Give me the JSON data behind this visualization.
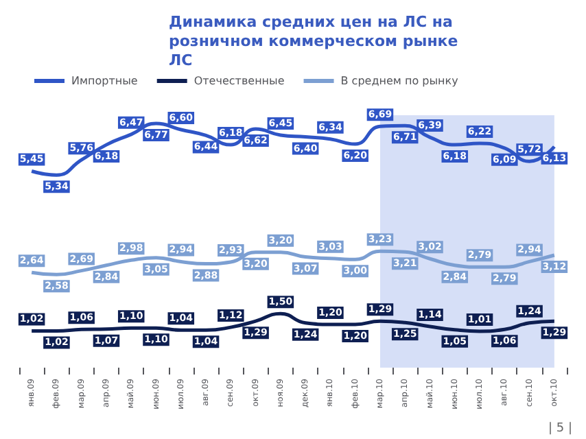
{
  "chart_data": {
    "type": "line",
    "title": "Динамика средних цен на ЛС на розничном коммерческом рынке ЛС",
    "categories": [
      "янв.09",
      "фев.09",
      "мар.09",
      "апр.09",
      "май.09",
      "июн.09",
      "июл.09",
      "авг.09",
      "сен.09",
      "окт.09",
      "ноя.09",
      "дек.09",
      "янв.10",
      "фев.10",
      "мар.10",
      "апр.10",
      "май.10",
      "июн.10",
      "июл.10",
      "авг.10",
      "сен.10",
      "окт.10"
    ],
    "series": [
      {
        "name": "Импортные",
        "color": "#2f55c6",
        "values": [
          5.45,
          5.34,
          5.76,
          6.18,
          6.47,
          6.77,
          6.6,
          6.44,
          6.18,
          6.62,
          6.45,
          6.4,
          6.34,
          6.2,
          6.69,
          6.71,
          6.39,
          6.18,
          6.22,
          6.09,
          5.72,
          6.13
        ],
        "value_labels": [
          "5,45",
          "5,34",
          "5,76",
          "6,18",
          "6,47",
          "6,77",
          "6,60",
          "6,44",
          "6,18",
          "6,62",
          "6,45",
          "6,40",
          "6,34",
          "6,20",
          "6,69",
          "6,71",
          "6,39",
          "6,18",
          "6,22",
          "6,09",
          "5,72",
          "6,13"
        ]
      },
      {
        "name": "Отечественные",
        "color": "#0e1f52",
        "values": [
          1.02,
          1.02,
          1.06,
          1.07,
          1.1,
          1.1,
          1.04,
          1.04,
          1.12,
          1.29,
          1.5,
          1.24,
          1.2,
          1.2,
          1.29,
          1.25,
          1.14,
          1.05,
          1.01,
          1.06,
          1.24,
          1.29
        ],
        "value_labels": [
          "1,02",
          "1,02",
          "1,06",
          "1,07",
          "1,10",
          "1,10",
          "1,04",
          "1,04",
          "1,12",
          "1,29",
          "1,50",
          "1,24",
          "1,20",
          "1,20",
          "1,29",
          "1,25",
          "1,14",
          "1,05",
          "1,01",
          "1,06",
          "1,24",
          "1,29"
        ]
      },
      {
        "name": "В среднем по рынку",
        "color": "#7c9fd2",
        "values": [
          2.64,
          2.58,
          2.69,
          2.84,
          2.98,
          3.05,
          2.94,
          2.88,
          2.93,
          3.2,
          3.2,
          3.07,
          3.03,
          3.0,
          3.23,
          3.21,
          3.02,
          2.84,
          2.79,
          2.79,
          2.94,
          3.12
        ],
        "value_labels": [
          "2,64",
          "2,58",
          "2,69",
          "2,84",
          "2,98",
          "3,05",
          "2,94",
          "2,88",
          "2,93",
          "3,20",
          "3,20",
          "3,07",
          "3,03",
          "3,00",
          "3,23",
          "3,21",
          "3,02",
          "2,84",
          "2,79",
          "2,79",
          "2,94",
          "3,12"
        ]
      }
    ],
    "bands": [
      {
        "axis": "x",
        "from": "мар.10",
        "to": "окт.10",
        "color": "#d6dff7"
      }
    ],
    "legend": "top left",
    "marker": "none",
    "line_style": "solid",
    "annotations": [
      "| 5 |"
    ]
  }
}
